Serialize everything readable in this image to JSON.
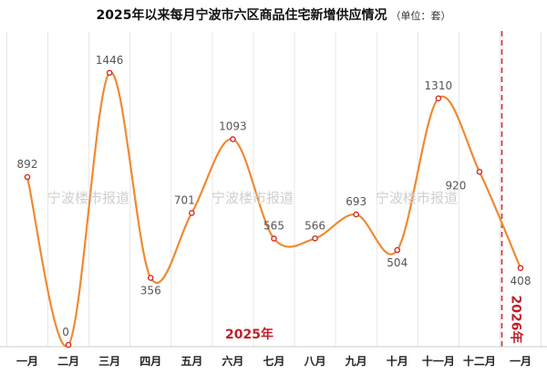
{
  "title": "2025年以来每月宁波市六区商品住宅新增供应情况",
  "unit": "（单位：套）",
  "watermark": "宁波楼市报道",
  "year_labels": {
    "y2025": "2025年",
    "y2026": "2026年"
  },
  "colors": {
    "line": "#ef8a33",
    "point": "#d42a2a",
    "divider": "#d42a2a",
    "grid": "#e6e6e6",
    "label": "#555555"
  },
  "chart_data": {
    "type": "line",
    "title": "2025年以来每月宁波市六区商品住宅新增供应情况",
    "unit": "套",
    "categories": [
      "一月",
      "二月",
      "三月",
      "四月",
      "五月",
      "六月",
      "七月",
      "八月",
      "九月",
      "十月",
      "十一月",
      "十二月",
      "一月"
    ],
    "values": [
      892,
      0,
      1446,
      356,
      701,
      1093,
      565,
      566,
      693,
      504,
      1310,
      920,
      408
    ],
    "ylim": [
      0,
      1600
    ],
    "smooth": true,
    "grid": "vertical",
    "divider_between": [
      "十二月",
      "一月"
    ]
  }
}
